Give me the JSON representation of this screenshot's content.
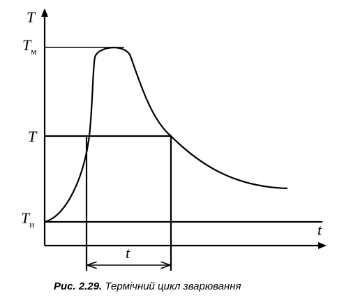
{
  "axes": {
    "y_label": "T",
    "x_label": "t"
  },
  "levels": {
    "t_max": {
      "main": "T",
      "sub": "м"
    },
    "t_level": "T",
    "t_initial": {
      "main": "T",
      "sub": "н"
    }
  },
  "interval_label": "t",
  "caption": {
    "prefix": "Рис. 2.29.",
    "text": " Термічний цикл зварювання"
  }
}
